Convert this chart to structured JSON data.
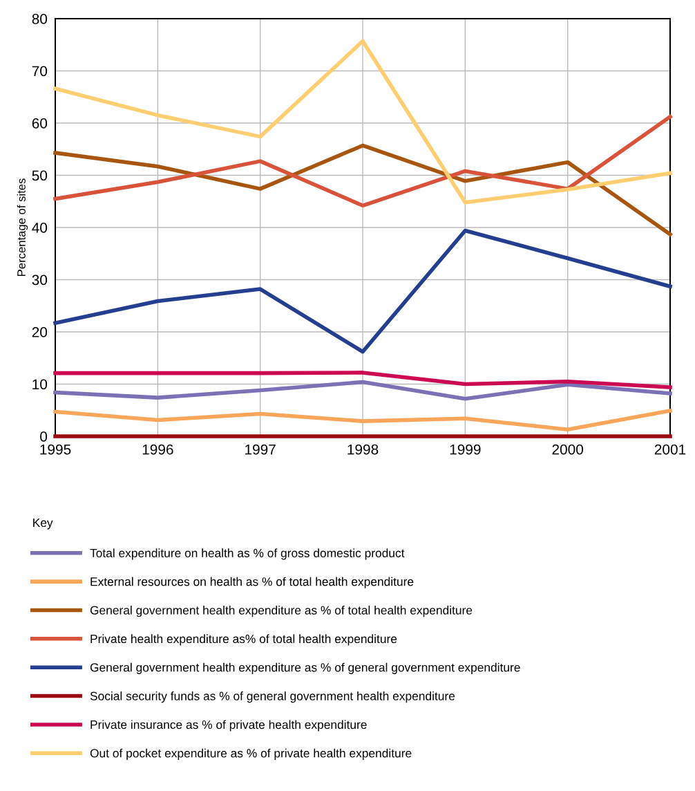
{
  "chart_data": {
    "type": "line",
    "ylabel": "Percentage of sites",
    "legend_title": "Key",
    "x": [
      1995,
      1996,
      1997,
      1998,
      1999,
      2000,
      2001
    ],
    "xlim": [
      1995,
      2001
    ],
    "xticks": [
      1995,
      1996,
      1997,
      1998,
      1999,
      2000,
      2001
    ],
    "ylim": [
      0,
      80
    ],
    "yticks": [
      0,
      10,
      20,
      30,
      40,
      50,
      60,
      70,
      80
    ],
    "grid": true,
    "legend": "bottom",
    "marker": "none",
    "line_style": "solid",
    "series": [
      {
        "name": "Total expenditure on health as % of gross domestic product",
        "color": "#7b72b6",
        "values": [
          8.4,
          7.4,
          8.8,
          10.4,
          7.2,
          9.9,
          8.2
        ]
      },
      {
        "name": "External resources on health as % of total health expenditure",
        "color": "#f9a55a",
        "values": [
          4.7,
          3.1,
          4.3,
          2.9,
          3.4,
          1.3,
          4.9
        ]
      },
      {
        "name": "General government health expenditure as % of total health expenditure",
        "color": "#a8560f",
        "values": [
          54.3,
          51.7,
          47.4,
          55.7,
          48.9,
          52.5,
          38.7
        ]
      },
      {
        "name": "Private health expenditure as% of total health expenditure",
        "color": "#d9533a",
        "values": [
          45.5,
          48.7,
          52.7,
          44.2,
          50.8,
          47.4,
          61.2
        ]
      },
      {
        "name": "General government health expenditure as % of general government expenditure",
        "color": "#243f8f",
        "values": [
          21.7,
          25.9,
          28.2,
          16.2,
          39.4,
          34.1,
          28.7
        ]
      },
      {
        "name": "Social security funds as % of general government health expenditure",
        "color": "#9b0a10",
        "values": [
          0,
          0,
          0,
          0,
          0,
          0,
          0
        ]
      },
      {
        "name": "Private insurance as % of private health expenditure",
        "color": "#cc0a52",
        "values": [
          12.1,
          12.1,
          12.1,
          12.2,
          10.0,
          10.5,
          9.4
        ]
      },
      {
        "name": "Out of pocket expenditure as % of private health expenditure",
        "color": "#ffce70",
        "values": [
          66.6,
          61.5,
          57.4,
          75.7,
          44.8,
          47.3,
          50.4
        ]
      }
    ]
  }
}
